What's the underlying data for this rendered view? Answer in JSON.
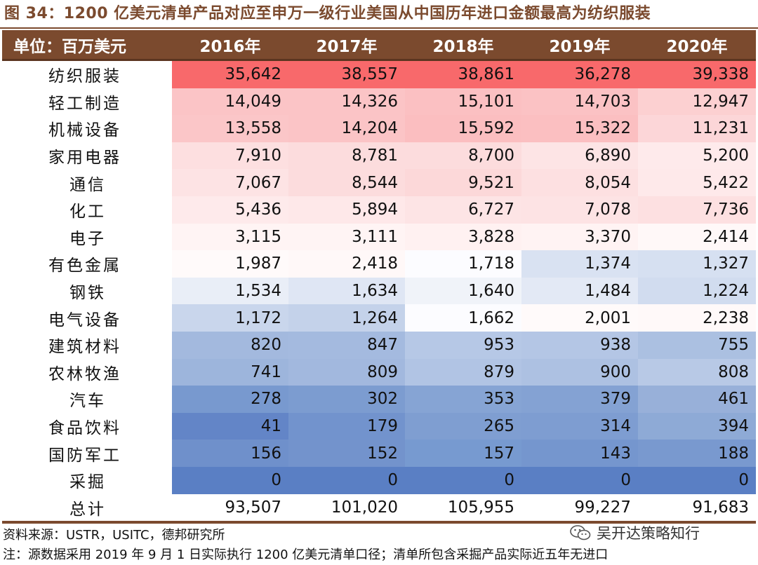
{
  "title": "图 34：1200 亿美元清单产品对应至申万一级行业美国从中国历年进口金额最高为纺织服装",
  "header": {
    "unit_label": "单位：百万美元",
    "years": [
      "2016年",
      "2017年",
      "2018年",
      "2019年",
      "2020年"
    ]
  },
  "chart_data": {
    "type": "table",
    "title": "图 34：1200 亿美元清单产品对应至申万一级行业美国从中国历年进口金额最高为纺织服装",
    "unit": "单位：百万美元",
    "columns": [
      "2016年",
      "2017年",
      "2018年",
      "2019年",
      "2020年"
    ],
    "rows": [
      {
        "name": "纺织服装",
        "values": [
          "35,642",
          "38,557",
          "38,861",
          "36,278",
          "39,338"
        ],
        "colors": [
          "#f8696b",
          "#f8696b",
          "#f8696b",
          "#f8696b",
          "#f8696b"
        ]
      },
      {
        "name": "轻工制造",
        "values": [
          "14,049",
          "14,326",
          "15,101",
          "14,703",
          "12,947"
        ],
        "colors": [
          "#fbc4c6",
          "#fbc4c6",
          "#fbc0c2",
          "#fbc2c4",
          "#fcd0d1"
        ]
      },
      {
        "name": "机械设备",
        "values": [
          "13,558",
          "14,204",
          "15,592",
          "15,322",
          "11,231"
        ],
        "colors": [
          "#fbc6c8",
          "#fbc4c6",
          "#fbbec0",
          "#fbbfc1",
          "#fcd6d8"
        ]
      },
      {
        "name": "家用电器",
        "values": [
          "7,910",
          "8,781",
          "8,700",
          "6,890",
          "5,200"
        ],
        "colors": [
          "#fddfe0",
          "#fcdcdd",
          "#fcdcdd",
          "#fde4e5",
          "#feeaeb"
        ]
      },
      {
        "name": "通信",
        "values": [
          "7,067",
          "8,544",
          "9,521",
          "8,054",
          "5,422"
        ],
        "colors": [
          "#fde3e4",
          "#fcdcdd",
          "#fcd8d9",
          "#fde0e1",
          "#fee9ea"
        ]
      },
      {
        "name": "化工",
        "values": [
          "5,436",
          "5,894",
          "6,727",
          "7,078",
          "7,736"
        ],
        "colors": [
          "#feeaeb",
          "#fee8e9",
          "#fde4e5",
          "#fde3e4",
          "#fde0e1"
        ]
      },
      {
        "name": "电子",
        "values": [
          "3,115",
          "3,111",
          "3,828",
          "3,370",
          "2,414"
        ],
        "colors": [
          "#fff4f4",
          "#fff4f4",
          "#fff1f1",
          "#fff3f3",
          "#fff8f8"
        ]
      },
      {
        "name": "有色金属",
        "values": [
          "1,987",
          "2,418",
          "1,718",
          "1,374",
          "1,327"
        ],
        "colors": [
          "#fffafa",
          "#fff8f8",
          "#fcfcff",
          "#d9e2f2",
          "#d6e0f1"
        ]
      },
      {
        "name": "钢铁",
        "values": [
          "1,534",
          "1,634",
          "1,640",
          "1,484",
          "1,224"
        ],
        "colors": [
          "#e9eef7",
          "#dfe6f4",
          "#f0f3f9",
          "#e3e9f5",
          "#d1dcef"
        ]
      },
      {
        "name": "电气设备",
        "values": [
          "1,172",
          "1,264",
          "1,662",
          "2,001",
          "2,238"
        ],
        "colors": [
          "#c9d6ec",
          "#c4d2ea",
          "#fcfcff",
          "#fffafa",
          "#fff9f9"
        ]
      },
      {
        "name": "建筑材料",
        "values": [
          "820",
          "847",
          "953",
          "938",
          "755"
        ],
        "colors": [
          "#a3b9de",
          "#a4badf",
          "#b6c8e6",
          "#b4c6e5",
          "#abc0e1"
        ]
      },
      {
        "name": "农林牧渔",
        "values": [
          "741",
          "809",
          "879",
          "900",
          "808"
        ],
        "colors": [
          "#9db5dc",
          "#a2b8de",
          "#b1c4e4",
          "#adc1e2",
          "#b8c9e6"
        ]
      },
      {
        "name": "汽车",
        "values": [
          "278",
          "302",
          "353",
          "379",
          "461"
        ],
        "colors": [
          "#7899cf",
          "#7c9cd0",
          "#86a4d4",
          "#84a2d3",
          "#98b0d9"
        ]
      },
      {
        "name": "食品饮料",
        "values": [
          "41",
          "179",
          "265",
          "314",
          "394"
        ],
        "colors": [
          "#6385c7",
          "#7293cd",
          "#7f9ed1",
          "#7e9dd1",
          "#8eaad6"
        ]
      },
      {
        "name": "国防军工",
        "values": [
          "156",
          "152",
          "157",
          "143",
          "188"
        ],
        "colors": [
          "#6f90cb",
          "#7393cc",
          "#779ad0",
          "#7596ce",
          "#7999cf"
        ]
      },
      {
        "name": "采掘",
        "values": [
          "0",
          "0",
          "0",
          "0",
          "0"
        ],
        "colors": [
          "#5a7fc4",
          "#5a7fc4",
          "#5a7fc4",
          "#5a7fc4",
          "#5a7fc4"
        ]
      },
      {
        "name": "总计",
        "values": [
          "93,507",
          "101,020",
          "105,955",
          "99,227",
          "91,683"
        ]
      }
    ]
  },
  "footer": {
    "source": "资料来源：USTR，USITC，德邦研究所",
    "note": "注：源数据采用 2019 年 9 月 1 日实际执行 1200 亿美元清单口径；清单所包含采掘产品实际近五年无进口",
    "watermark": "吴开达策略知行",
    "watermark_icon": "wechat-icon"
  }
}
